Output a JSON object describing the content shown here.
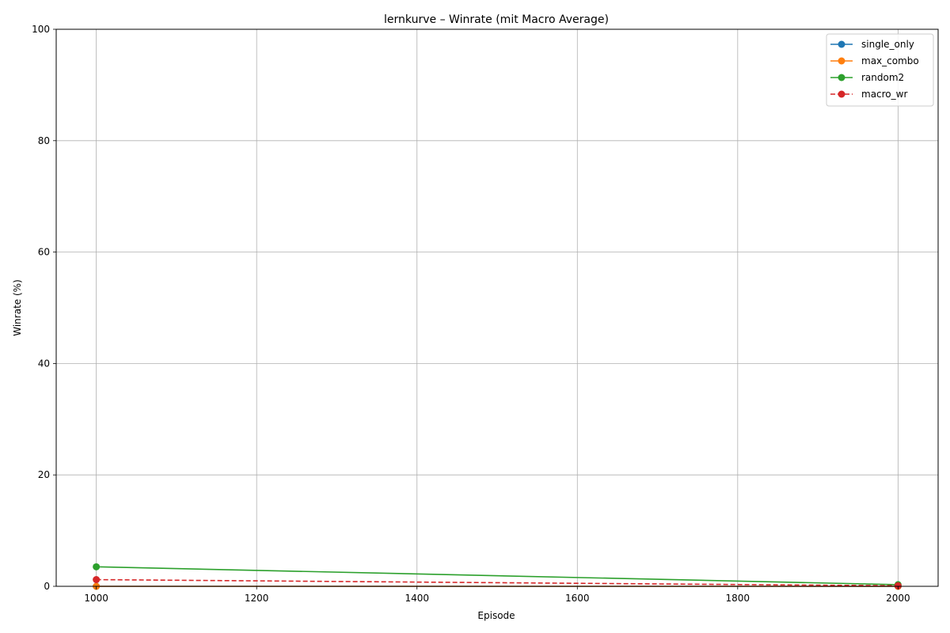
{
  "chart_data": {
    "type": "line",
    "title": "lernkurve – Winrate (mit Macro Average)",
    "xlabel": "Episode",
    "ylabel": "Winrate (%)",
    "xlim": [
      950,
      2050
    ],
    "ylim": [
      0,
      100
    ],
    "xticks": [
      1000,
      1200,
      1400,
      1600,
      1800,
      2000
    ],
    "yticks": [
      0,
      20,
      40,
      60,
      80,
      100
    ],
    "grid": true,
    "legend_position": "top-right",
    "x": [
      1000,
      2000
    ],
    "series": [
      {
        "name": "single_only",
        "values": [
          0.0,
          0.0
        ],
        "color": "#1f77b4",
        "dashed": false
      },
      {
        "name": "max_combo",
        "values": [
          0.0,
          0.0
        ],
        "color": "#ff7f0e",
        "dashed": false
      },
      {
        "name": "random2",
        "values": [
          3.5,
          0.3
        ],
        "color": "#2ca02c",
        "dashed": false
      },
      {
        "name": "macro_wr",
        "values": [
          1.2,
          0.1
        ],
        "color": "#d62728",
        "dashed": true
      }
    ]
  }
}
